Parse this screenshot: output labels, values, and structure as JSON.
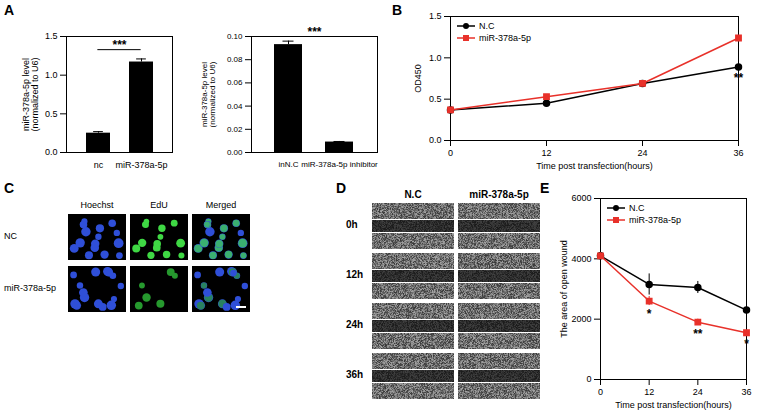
{
  "chart_data": [
    {
      "panel": "A",
      "type": "bar",
      "categories": [
        "nc",
        "miR-378a-5p"
      ],
      "values": [
        0.25,
        1.17
      ],
      "errors": [
        0.02,
        0.04
      ],
      "colors": [
        "#000000",
        "#000000"
      ],
      "ylabel": "miR-378a-5p level\n(normalized to U6)",
      "ylim": [
        0,
        1.5
      ],
      "yticks": [
        {
          "value": 0,
          "label": "0.0"
        },
        0.5,
        {
          "value": 1,
          "label": "1.0"
        },
        1.5
      ],
      "significance": "***"
    },
    {
      "type": "bar",
      "categories": [
        "inN.C",
        "miR-378a-5p inhibitor"
      ],
      "values": [
        0.093,
        0.009
      ],
      "errors": [
        0.003,
        0.0005
      ],
      "colors": [
        "#000000",
        "#000000"
      ],
      "ylabel": "miR-378a-5p level\n(normalized to U6)",
      "ylim": [
        0,
        0.1
      ],
      "yticks": [
        {
          "value": 0,
          "label": "0.00"
        },
        {
          "value": 0.02,
          "label": "0.02"
        },
        {
          "value": 0.04,
          "label": "0.04"
        },
        {
          "value": 0.06,
          "label": "0.06"
        },
        {
          "value": 0.08,
          "label": "0.08"
        },
        {
          "value": 0.1,
          "label": "0.10"
        }
      ],
      "significance": "***"
    },
    {
      "panel": "B",
      "type": "line",
      "x": [
        0,
        12,
        24,
        36
      ],
      "xlim": [
        0,
        36
      ],
      "xticks": [
        0,
        12,
        24,
        36
      ],
      "ylim": [
        0,
        1.5
      ],
      "yticks": [
        {
          "value": 0,
          "label": "0.0"
        },
        0.5,
        {
          "value": 1,
          "label": "1.0"
        },
        1.5
      ],
      "xlabel": "Time post transfection(hours)",
      "ylabel": "OD450",
      "legend": "top-left",
      "series": [
        {
          "name": "N.C",
          "color": "#000000",
          "marker": "circle",
          "values": [
            0.37,
            0.45,
            0.69,
            0.89
          ],
          "errors": [
            0.01,
            0.01,
            0.01,
            0.03
          ]
        },
        {
          "name": "miR-378a-5p",
          "color": "#e8312a",
          "marker": "square",
          "values": [
            0.37,
            0.53,
            0.69,
            1.24
          ],
          "errors": [
            0.01,
            0.01,
            0.01,
            0.03
          ]
        }
      ],
      "annotations": [
        {
          "x": 36,
          "text": "**"
        }
      ]
    },
    {
      "panel": "C",
      "type": "image_grid",
      "columns": [
        "Hoechst",
        "EdU",
        "Merged"
      ],
      "rows": [
        "NC",
        "miR-378a-5p"
      ]
    },
    {
      "panel": "D",
      "type": "image_grid",
      "columns": [
        "N.C",
        "miR-378a-5p"
      ],
      "rows": [
        "0h",
        "12h",
        "24h",
        "36h"
      ]
    },
    {
      "panel": "E",
      "type": "line",
      "x": [
        0,
        12,
        24,
        36
      ],
      "xlim": [
        0,
        36
      ],
      "xticks": [
        0,
        12,
        24,
        36
      ],
      "ylim": [
        0,
        6000
      ],
      "yticks": [
        0,
        2000,
        4000,
        6000
      ],
      "xlabel": "Time post transfection(hours)",
      "ylabel": "The area of open wound",
      "legend": "top-left",
      "series": [
        {
          "name": "N.C",
          "color": "#000000",
          "marker": "circle",
          "values": [
            4100,
            3150,
            3050,
            2300
          ],
          "errors": [
            100,
            350,
            200,
            200
          ]
        },
        {
          "name": "miR-378a-5p",
          "color": "#e8312a",
          "marker": "square",
          "values": [
            4100,
            2600,
            1900,
            1550
          ],
          "errors": [
            100,
            150,
            100,
            80
          ]
        }
      ],
      "annotations": [
        {
          "x": 12,
          "text": "*"
        },
        {
          "x": 24,
          "text": "**"
        },
        {
          "x": 36,
          "text": "*"
        }
      ]
    }
  ]
}
